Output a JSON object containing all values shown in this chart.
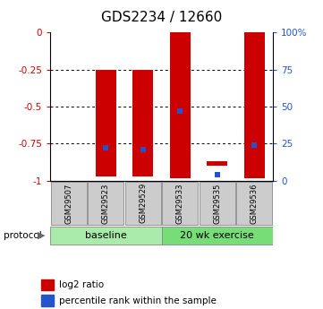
{
  "title": "GDS2234 / 12660",
  "samples": [
    "GSM29507",
    "GSM29523",
    "GSM29529",
    "GSM29533",
    "GSM29535",
    "GSM29536"
  ],
  "bar_bottom": [
    0.0,
    -0.97,
    -0.97,
    -0.98,
    -0.9,
    -0.98
  ],
  "bar_top": [
    0.0,
    -0.25,
    -0.25,
    0.0,
    -0.87,
    0.0
  ],
  "percentile_rank": [
    null,
    -0.78,
    -0.79,
    -0.53,
    -0.96,
    -0.76
  ],
  "ylim": [
    -1.0,
    0.0
  ],
  "yticks_left": [
    0.0,
    -0.25,
    -0.5,
    -0.75,
    -1.0
  ],
  "ytick_labels_left": [
    "0",
    "-0.25",
    "-0.5",
    "-0.75",
    "-1"
  ],
  "yticks_right": [
    100,
    75,
    50,
    25,
    0
  ],
  "ytick_labels_right": [
    "100%",
    "75",
    "50",
    "25",
    "0"
  ],
  "groups": [
    {
      "label": "baseline",
      "cols": [
        0,
        1,
        2
      ],
      "color": "#aaeaaa"
    },
    {
      "label": "20 wk exercise",
      "cols": [
        3,
        4,
        5
      ],
      "color": "#77dd77"
    }
  ],
  "bar_color": "#cc0000",
  "blue_color": "#2255cc",
  "left_tick_color": "#cc0000",
  "right_tick_color": "#2255cc",
  "sample_box_color": "#cccccc",
  "title_fontsize": 11,
  "tick_fontsize": 7.5,
  "sample_fontsize": 6,
  "group_fontsize": 8,
  "legend_fontsize": 7.5,
  "bar_width": 0.55
}
